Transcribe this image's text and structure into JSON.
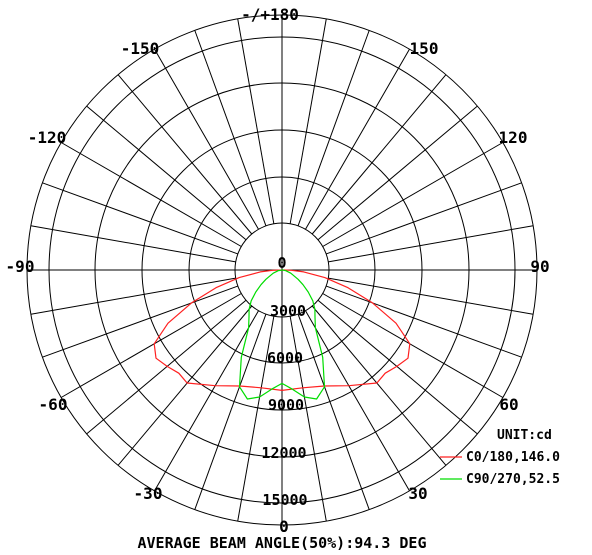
{
  "chart_data": {
    "type": "polar",
    "title": "",
    "unit_label": "UNIT:cd",
    "footer": "AVERAGE BEAM ANGLE(50%):94.3 DEG",
    "angle_labels": [
      {
        "angle": 180,
        "text": "-/+180"
      },
      {
        "angle": -150,
        "text": "-150"
      },
      {
        "angle": 150,
        "text": "150"
      },
      {
        "angle": -120,
        "text": "-120"
      },
      {
        "angle": 120,
        "text": "120"
      },
      {
        "angle": -90,
        "text": "-90"
      },
      {
        "angle": 90,
        "text": "90"
      },
      {
        "angle": -60,
        "text": "-60"
      },
      {
        "angle": 60,
        "text": "60"
      },
      {
        "angle": -30,
        "text": "-30"
      },
      {
        "angle": 30,
        "text": "30"
      },
      {
        "angle": 0,
        "text": "0"
      }
    ],
    "radial_ticks": [
      "0",
      "3000",
      "6000",
      "9000",
      "12000",
      "15000"
    ],
    "rmax": 15000,
    "grid": true,
    "legend_position": "bottom-right",
    "series": [
      {
        "name": "C0/180,146.0",
        "color": "#ff2020",
        "angles": [
          0,
          10,
          20,
          30,
          40,
          45,
          50,
          55,
          60,
          65,
          70,
          75,
          80,
          85,
          88,
          90
        ],
        "values": [
          7750,
          7700,
          7950,
          8600,
          9500,
          9400,
          9650,
          9900,
          9500,
          8100,
          6200,
          4400,
          2800,
          1400,
          600,
          150
        ]
      },
      {
        "name": "C90/270,52.5",
        "color": "#00dd00",
        "angles": [
          0,
          5,
          10,
          15,
          20,
          25,
          30,
          35,
          40,
          45,
          50,
          55,
          60,
          70,
          80,
          90
        ],
        "values": [
          7300,
          7700,
          8300,
          8600,
          8000,
          6200,
          4300,
          3700,
          3300,
          2800,
          2200,
          1650,
          1200,
          600,
          250,
          50
        ]
      }
    ]
  }
}
